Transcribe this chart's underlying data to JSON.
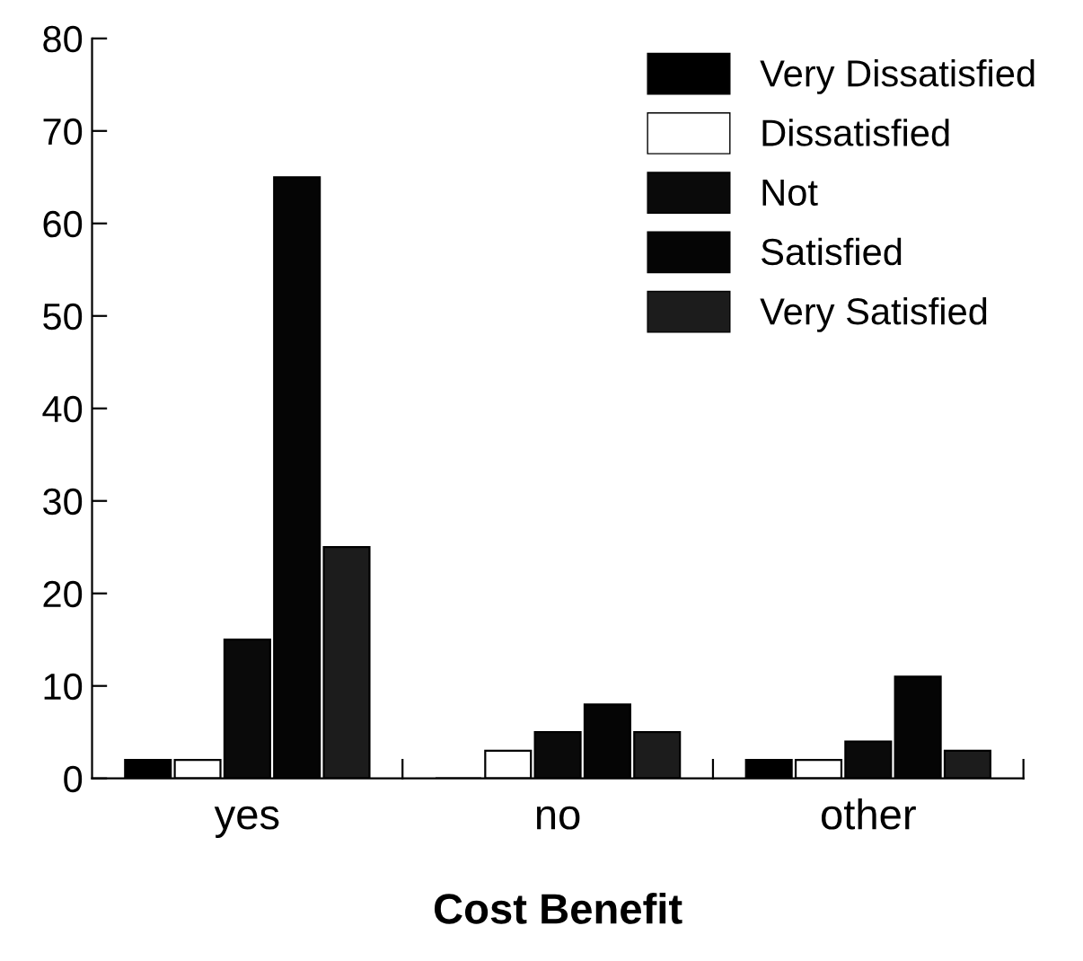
{
  "chart_data": {
    "type": "bar",
    "xlabel": "Cost Benefit",
    "categories": [
      "yes",
      "no",
      "other"
    ],
    "series": [
      {
        "name": "Very Dissatisfied",
        "color": "#000000",
        "values": [
          2,
          0,
          2
        ]
      },
      {
        "name": "Dissatisfied",
        "color": "#ffffff",
        "values": [
          2,
          3,
          2
        ]
      },
      {
        "name": "Not",
        "color": "#0a0a0a",
        "values": [
          15,
          5,
          4
        ]
      },
      {
        "name": "Satisfied",
        "color": "#050505",
        "values": [
          65,
          8,
          11
        ]
      },
      {
        "name": "Very Satisfied",
        "color": "#1c1c1c",
        "values": [
          25,
          5,
          3
        ]
      }
    ],
    "ylim": [
      0,
      80
    ],
    "yticks": [
      0,
      10,
      20,
      30,
      40,
      50,
      60,
      70,
      80
    ],
    "grid": false,
    "legend": "top right"
  }
}
